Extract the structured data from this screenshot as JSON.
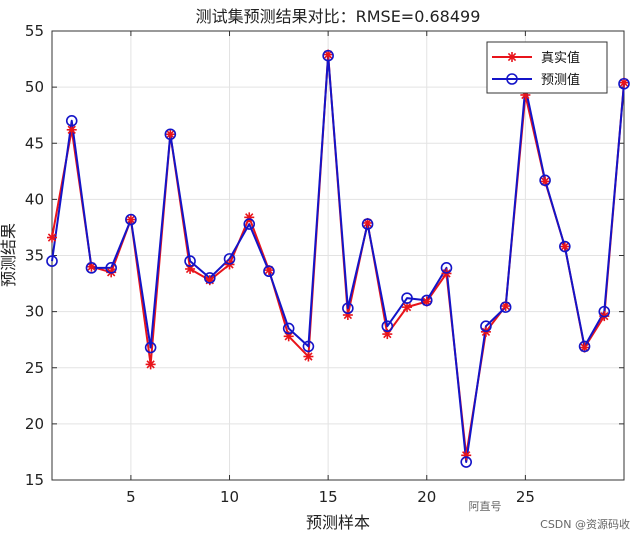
{
  "chart_data": {
    "type": "line",
    "title": "测试集预测结果对比：RMSE=0.68499",
    "xlabel": "预测样本",
    "ylabel": "预测结果",
    "xlim": [
      1,
      30
    ],
    "ylim": [
      15,
      55
    ],
    "xticks": [
      5,
      10,
      15,
      20,
      25
    ],
    "yticks": [
      15,
      20,
      25,
      30,
      35,
      40,
      45,
      50,
      55
    ],
    "grid": true,
    "legend_position": "top-right",
    "x": [
      1,
      2,
      3,
      4,
      5,
      6,
      7,
      8,
      9,
      10,
      11,
      12,
      13,
      14,
      15,
      16,
      17,
      18,
      19,
      20,
      21,
      22,
      23,
      24,
      25,
      26,
      27,
      28,
      29,
      30
    ],
    "series": [
      {
        "name": "真实值",
        "color": "#e8141b",
        "marker": "asterisk",
        "values": [
          36.6,
          46.2,
          34.0,
          33.5,
          38.2,
          25.3,
          45.8,
          33.8,
          32.8,
          34.2,
          38.4,
          33.7,
          27.8,
          26.0,
          52.9,
          29.7,
          37.9,
          28.0,
          30.4,
          30.9,
          33.4,
          17.2,
          28.2,
          30.5,
          49.3,
          41.6,
          35.8,
          26.8,
          29.6,
          50.4
        ]
      },
      {
        "name": "预测值",
        "color": "#1414c8",
        "marker": "circle",
        "values": [
          34.5,
          47.0,
          33.9,
          33.9,
          38.2,
          26.8,
          45.8,
          34.5,
          33.0,
          34.7,
          37.8,
          33.6,
          28.5,
          26.9,
          52.8,
          30.3,
          37.8,
          28.7,
          31.2,
          31.0,
          33.9,
          16.6,
          28.7,
          30.4,
          50.0,
          41.7,
          35.8,
          26.9,
          30.0,
          50.3
        ]
      }
    ]
  },
  "watermarks": {
    "center": "阿直号",
    "corner": "CSDN @资源码收"
  }
}
